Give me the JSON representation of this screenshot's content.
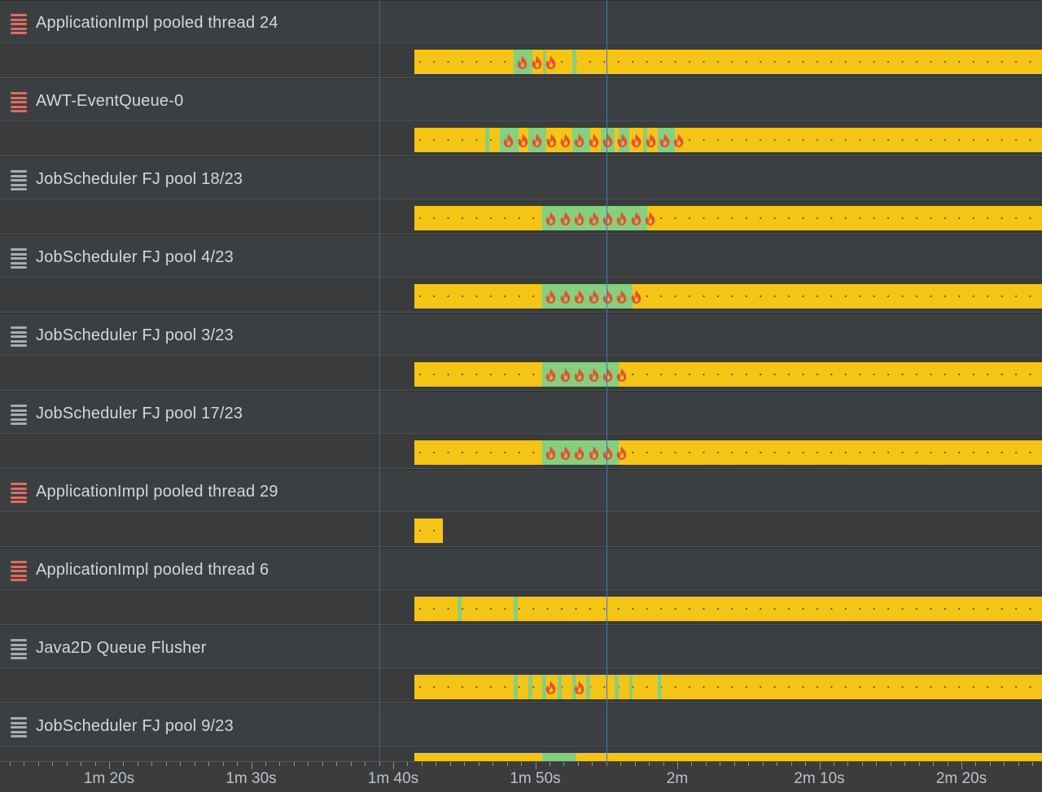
{
  "colors": {
    "background": "#3c3f41",
    "cpu_bar": "#f4c515",
    "running_segment": "#86cf7e",
    "flame": "#e8502e",
    "thread_icon_active": "#e06b62",
    "thread_icon_idle": "#a9abad",
    "cursor_line": "#4a76b0"
  },
  "axis": {
    "labels": [
      "1m 20s",
      "1m 30s",
      "1m 40s",
      "1m 50s",
      "2m",
      "2m 10s",
      "2m 20s"
    ]
  },
  "threads": [
    {
      "name": "ApplicationImpl pooled thread 24",
      "icon": "thread-icon-active",
      "bar": [
        509,
        1280
      ],
      "segments": [
        [
          631,
          654
        ],
        [
          667,
          671
        ],
        [
          703,
          708
        ]
      ],
      "flames": [
        [
          633,
          3
        ]
      ]
    },
    {
      "name": "AWT-EventQueue-0",
      "icon": "thread-icon-active",
      "bar": [
        509,
        1280
      ],
      "segments": [
        [
          596,
          601
        ],
        [
          614,
          637
        ],
        [
          649,
          671
        ],
        [
          703,
          725
        ],
        [
          738,
          755
        ],
        [
          760,
          773
        ],
        [
          790,
          795
        ],
        [
          808,
          829
        ]
      ],
      "flames": [
        [
          616,
          13
        ]
      ]
    },
    {
      "name": "JobScheduler FJ pool 18/23",
      "icon": "thread-icon-idle",
      "bar": [
        509,
        1280
      ],
      "segments": [
        [
          666,
          795
        ]
      ],
      "flames": [
        [
          668,
          8
        ]
      ]
    },
    {
      "name": "JobScheduler FJ pool 4/23",
      "icon": "thread-icon-idle",
      "bar": [
        509,
        1280
      ],
      "segments": [
        [
          666,
          777
        ]
      ],
      "flames": [
        [
          668,
          7
        ]
      ]
    },
    {
      "name": "JobScheduler FJ pool 3/23",
      "icon": "thread-icon-idle",
      "bar": [
        509,
        1280
      ],
      "segments": [
        [
          666,
          760
        ]
      ],
      "flames": [
        [
          668,
          6
        ]
      ]
    },
    {
      "name": "JobScheduler FJ pool 17/23",
      "icon": "thread-icon-idle",
      "bar": [
        509,
        1280
      ],
      "segments": [
        [
          666,
          760
        ]
      ],
      "flames": [
        [
          668,
          6
        ]
      ]
    },
    {
      "name": "ApplicationImpl pooled thread 29",
      "icon": "thread-icon-active",
      "bar": [
        509,
        544
      ],
      "segments": [],
      "flames": []
    },
    {
      "name": "ApplicationImpl pooled thread 6",
      "icon": "thread-icon-active",
      "bar": [
        509,
        1280
      ],
      "segments": [
        [
          562,
          567
        ],
        [
          631,
          636
        ]
      ],
      "flames": []
    },
    {
      "name": "Java2D Queue Flusher",
      "icon": "thread-icon-idle",
      "bar": [
        509,
        1280
      ],
      "segments": [
        [
          631,
          636
        ],
        [
          649,
          654
        ],
        [
          666,
          671
        ],
        [
          685,
          690
        ],
        [
          703,
          708
        ],
        [
          720,
          725
        ],
        [
          755,
          760
        ],
        [
          773,
          777
        ],
        [
          808,
          812
        ]
      ],
      "flames": [
        [
          668,
          1
        ],
        [
          703,
          1
        ]
      ]
    },
    {
      "name": "JobScheduler FJ pool 9/23",
      "icon": "thread-icon-idle",
      "bar": [
        509,
        1280
      ],
      "segments": [
        [
          666,
          708
        ]
      ],
      "flames": []
    }
  ]
}
